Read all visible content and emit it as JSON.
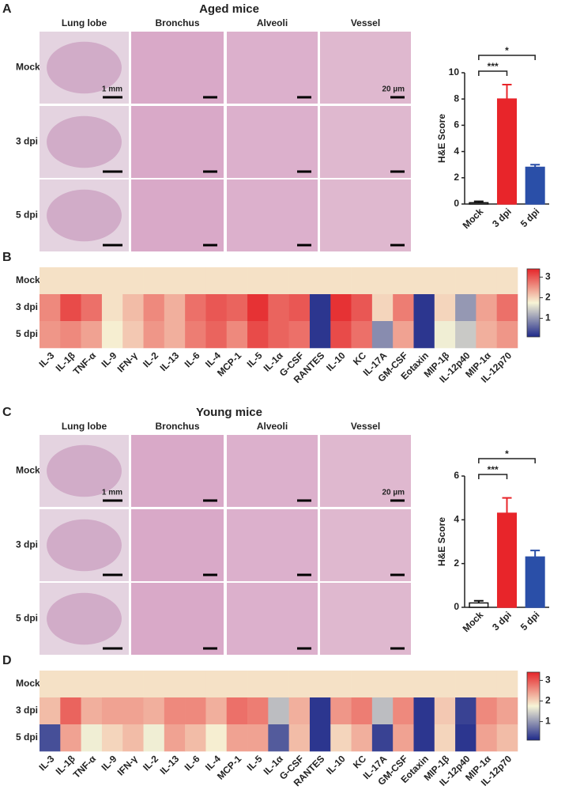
{
  "panels": [
    {
      "letter": "A",
      "title": "Aged mice",
      "columns": [
        "Lung lobe",
        "Bronchus",
        "Alveoli",
        "Vessel"
      ],
      "rows": [
        "Mock",
        "3 dpi",
        "5 dpi"
      ],
      "scale_bars": [
        "1 mm",
        "20 µm"
      ],
      "heatmap_letter": "B"
    },
    {
      "letter": "C",
      "title": "Young mice",
      "columns": [
        "Lung lobe",
        "Bronchus",
        "Alveoli",
        "Vessel"
      ],
      "rows": [
        "Mock",
        "3 dpi",
        "5 dpi"
      ],
      "scale_bars": [
        "1 mm",
        "20 µm"
      ],
      "heatmap_letter": "D"
    }
  ],
  "chart_data": [
    {
      "type": "bar",
      "ylabel": "H&E Score",
      "categories": [
        "Mock",
        "3 dpi",
        "5 dpi"
      ],
      "values": [
        0.1,
        8.0,
        2.8
      ],
      "errors": [
        0.1,
        1.1,
        0.2
      ],
      "colors": [
        "#ffffff",
        "#e8252a",
        "#2a4fa8"
      ],
      "ylim": [
        0,
        10
      ],
      "yticks": [
        0,
        2,
        4,
        6,
        8,
        10
      ],
      "annotations": [
        {
          "text": "***",
          "between": [
            "Mock",
            "3 dpi"
          ]
        },
        {
          "text": "*",
          "between": [
            "Mock",
            "5 dpi"
          ]
        }
      ]
    },
    {
      "type": "heatmap",
      "x": [
        "IL-3",
        "IL-1β",
        "TNF-α",
        "IL-9",
        "IFN-γ",
        "IL-2",
        "IL-13",
        "IL-6",
        "IL-4",
        "MCP-1",
        "IL-5",
        "IL-1α",
        "G-CSF",
        "RANTES",
        "IL-10",
        "KC",
        "IL-17A",
        "GM-CSF",
        "Eotaxin",
        "MIP-1β",
        "IL-12p40",
        "MIP-1α",
        "IL-12p70"
      ],
      "y": [
        "Mock",
        "3 dpi",
        "5 dpi"
      ],
      "values": [
        [
          1.9,
          1.9,
          1.9,
          1.9,
          1.9,
          1.9,
          1.9,
          1.9,
          1.9,
          1.9,
          1.9,
          1.9,
          1.9,
          1.9,
          1.9,
          1.9,
          1.9,
          1.9,
          1.9,
          1.9,
          1.9,
          1.9,
          1.9
        ],
        [
          2.6,
          3.1,
          2.8,
          1.9,
          2.2,
          2.6,
          2.3,
          2.8,
          3.0,
          2.9,
          3.3,
          2.9,
          3.0,
          0.2,
          3.3,
          3.0,
          2.0,
          2.7,
          0.2,
          2.0,
          1.0,
          2.4,
          2.8
        ],
        [
          2.5,
          2.6,
          2.4,
          1.8,
          2.1,
          2.5,
          2.3,
          2.7,
          2.9,
          2.6,
          3.1,
          2.9,
          2.8,
          0.2,
          3.1,
          2.8,
          0.9,
          2.4,
          0.2,
          1.7,
          1.4,
          2.3,
          2.5
        ]
      ],
      "zlim": [
        0.1,
        3.4
      ],
      "zticks": [
        1,
        2,
        3
      ],
      "colormap": [
        "#1f2a8a",
        "#f7f4d6",
        "#e5252a"
      ]
    },
    {
      "type": "bar",
      "ylabel": "H&E Score",
      "categories": [
        "Mock",
        "3 dpi",
        "5 dpi"
      ],
      "values": [
        0.2,
        4.3,
        2.3
      ],
      "errors": [
        0.1,
        0.7,
        0.3
      ],
      "colors": [
        "#ffffff",
        "#e8252a",
        "#2a4fa8"
      ],
      "ylim": [
        0,
        6
      ],
      "yticks": [
        0,
        2,
        4,
        6
      ],
      "annotations": [
        {
          "text": "***",
          "between": [
            "Mock",
            "3 dpi"
          ]
        },
        {
          "text": "*",
          "between": [
            "Mock",
            "5 dpi"
          ]
        }
      ]
    },
    {
      "type": "heatmap",
      "x": [
        "IL-3",
        "IL-1β",
        "TNF-α",
        "IL-9",
        "IFN-γ",
        "IL-2",
        "IL-13",
        "IL-6",
        "IL-4",
        "MCP-1",
        "IL-5",
        "IL-1α",
        "G-CSF",
        "RANTES",
        "IL-10",
        "KC",
        "IL-17A",
        "GM-CSF",
        "Eotaxin",
        "MIP-1β",
        "IL-12p40",
        "MIP-1α",
        "IL-12p70"
      ],
      "y": [
        "Mock",
        "3 dpi",
        "5 dpi"
      ],
      "values": [
        [
          1.9,
          1.9,
          1.9,
          1.9,
          1.9,
          1.9,
          1.9,
          1.9,
          1.9,
          1.9,
          1.9,
          1.9,
          1.9,
          1.9,
          1.9,
          1.9,
          1.9,
          1.9,
          1.9,
          1.9,
          1.9,
          1.9,
          1.9
        ],
        [
          2.2,
          2.9,
          2.3,
          2.4,
          2.4,
          2.3,
          2.6,
          2.6,
          2.3,
          2.8,
          2.7,
          1.3,
          2.3,
          0.2,
          2.5,
          2.7,
          1.3,
          2.6,
          0.2,
          2.1,
          0.3,
          2.6,
          2.4
        ],
        [
          0.4,
          2.4,
          1.7,
          2.0,
          2.2,
          1.7,
          2.4,
          2.2,
          1.8,
          2.4,
          2.4,
          0.5,
          2.2,
          0.2,
          2.0,
          2.3,
          0.3,
          2.4,
          0.2,
          2.0,
          0.2,
          2.4,
          2.2
        ]
      ],
      "zlim": [
        0.1,
        3.4
      ],
      "zticks": [
        1,
        2,
        3
      ],
      "colormap": [
        "#1f2a8a",
        "#f7f4d6",
        "#e5252a"
      ]
    }
  ]
}
